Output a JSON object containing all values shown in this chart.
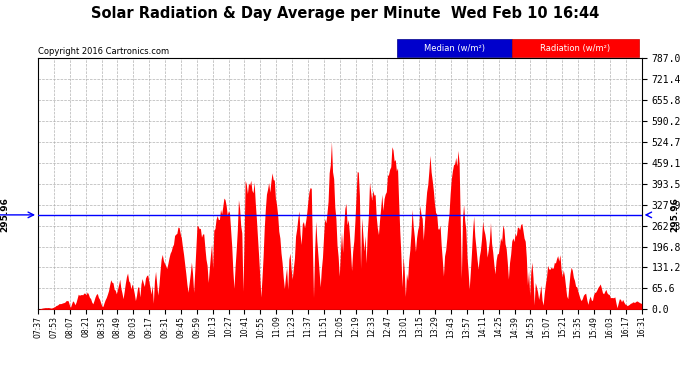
{
  "title": "Solar Radiation & Day Average per Minute  Wed Feb 10 16:44",
  "copyright": "Copyright 2016 Cartronics.com",
  "median_value": 295.96,
  "ymin": 0.0,
  "ymax": 787.0,
  "ytick_vals": [
    0.0,
    65.6,
    131.2,
    196.8,
    262.3,
    327.9,
    393.5,
    459.1,
    524.7,
    590.2,
    655.8,
    721.4,
    787.0
  ],
  "background_color": "#ffffff",
  "area_color": "#ff0000",
  "median_color": "#0000ff",
  "xtick_labels": [
    "07:37",
    "07:53",
    "08:07",
    "08:21",
    "08:35",
    "08:49",
    "09:03",
    "09:17",
    "09:31",
    "09:45",
    "09:59",
    "10:13",
    "10:27",
    "10:41",
    "10:55",
    "11:09",
    "11:23",
    "11:37",
    "11:51",
    "12:05",
    "12:19",
    "12:33",
    "12:47",
    "13:01",
    "13:15",
    "13:29",
    "13:43",
    "13:57",
    "14:11",
    "14:25",
    "14:39",
    "14:53",
    "15:07",
    "15:21",
    "15:35",
    "15:49",
    "16:03",
    "16:17",
    "16:31"
  ]
}
